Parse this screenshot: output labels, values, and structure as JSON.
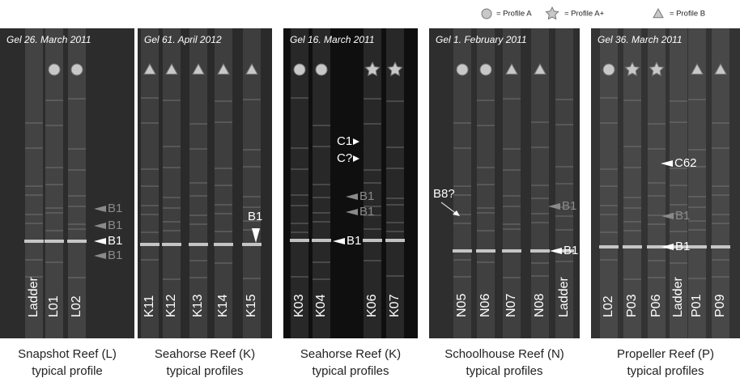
{
  "legend": [
    "= Profile A",
    "= Profile A+",
    "= Profile B"
  ],
  "panels": [
    {
      "title": "Gel 26. March 2011",
      "lanes": [
        "Ladder",
        "L01",
        "L02"
      ],
      "markers": [
        "B1",
        "B1",
        "B1",
        "B1"
      ],
      "caption": [
        "Snapshot Reef (L)",
        "typical profile"
      ]
    },
    {
      "title": "Gel 61. April 2012",
      "lanes": [
        "K11",
        "K12",
        "K13",
        "K14",
        "K15"
      ],
      "markers": [
        "B1"
      ],
      "caption": [
        "Seahorse Reef (K)",
        "typical profiles"
      ]
    },
    {
      "title": "Gel 16. March 2011",
      "lanes": [
        "K03",
        "K04",
        "K06",
        "K07"
      ],
      "markers": [
        "C1",
        "C?",
        "B1",
        "B1",
        "B1"
      ],
      "caption": [
        "Seahorse Reef (K)",
        "typical profiles"
      ]
    },
    {
      "title": "Gel 1. February 2011",
      "lanes": [
        "N05",
        "N06",
        "N07",
        "N08",
        "Ladder"
      ],
      "markers": [
        "B8?",
        "B1",
        "B1"
      ],
      "caption": [
        "Schoolhouse Reef (N)",
        "typical profiles"
      ]
    },
    {
      "title": "Gel 36. March 2011",
      "lanes": [
        "L02",
        "P03",
        "P06",
        "Ladder",
        "P01",
        "P09"
      ],
      "markers": [
        "C62",
        "B1",
        "B1"
      ],
      "caption": [
        "Propeller Reef (P)",
        "typical profiles"
      ]
    }
  ]
}
